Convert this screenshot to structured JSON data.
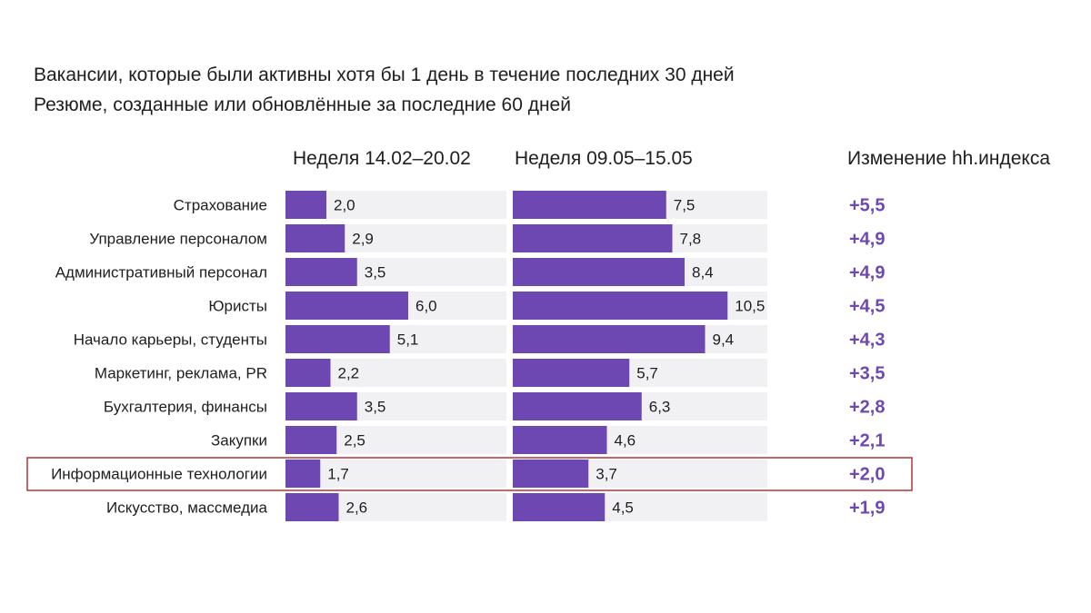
{
  "subtitles": [
    "Вакансии, которые были активны хотя бы 1 день в течение последних 30 дней",
    "Резюме, созданные или обновлённые за последние 60 дней"
  ],
  "column_headers": {
    "week1": "Неделя 14.02–20.02",
    "week2": "Неделя 09.05–15.05",
    "change": "Изменение hh.индекса"
  },
  "colors": {
    "bar": "#6e48b2",
    "track": "#f1f1f4",
    "change_text": "#6e48b2",
    "highlight_border": "#b5323a"
  },
  "chart_data": {
    "type": "bar",
    "orientation": "horizontal",
    "categories": [
      "Страхование",
      "Управление персоналом",
      "Административный персонал",
      "Юристы",
      "Начало карьеры, студенты",
      "Маркетинг, реклама, PR",
      "Бухгалтерия, финансы",
      "Закупки",
      "Информационные технологии",
      "Искусство, массмедиа"
    ],
    "series": [
      {
        "name": "Неделя 14.02–20.02",
        "values": [
          2.0,
          2.9,
          3.5,
          6.0,
          5.1,
          2.2,
          3.5,
          2.5,
          1.7,
          2.6
        ],
        "labels": [
          "2,0",
          "2,9",
          "3,5",
          "6,0",
          "5,1",
          "2,2",
          "3,5",
          "2,5",
          "1,7",
          "2,6"
        ]
      },
      {
        "name": "Неделя 09.05–15.05",
        "values": [
          7.5,
          7.8,
          8.4,
          10.5,
          9.4,
          5.7,
          6.3,
          4.6,
          3.7,
          4.5
        ],
        "labels": [
          "7,5",
          "7,8",
          "8,4",
          "10,5",
          "9,4",
          "5,7",
          "6,3",
          "4,6",
          "3,7",
          "4,5"
        ]
      }
    ],
    "change": {
      "name": "Изменение hh.индекса",
      "values": [
        5.5,
        4.9,
        4.9,
        4.5,
        4.3,
        3.5,
        2.8,
        2.1,
        2.0,
        1.9
      ],
      "labels": [
        "+5,5",
        "+4,9",
        "+4,9",
        "+4,5",
        "+4,3",
        "+3,5",
        "+2,8",
        "+2,1",
        "+2,0",
        "+1,9"
      ]
    },
    "highlighted_category": "Информационные технологии",
    "xlim": [
      0,
      13.5
    ],
    "grid": false,
    "legend": "none"
  }
}
